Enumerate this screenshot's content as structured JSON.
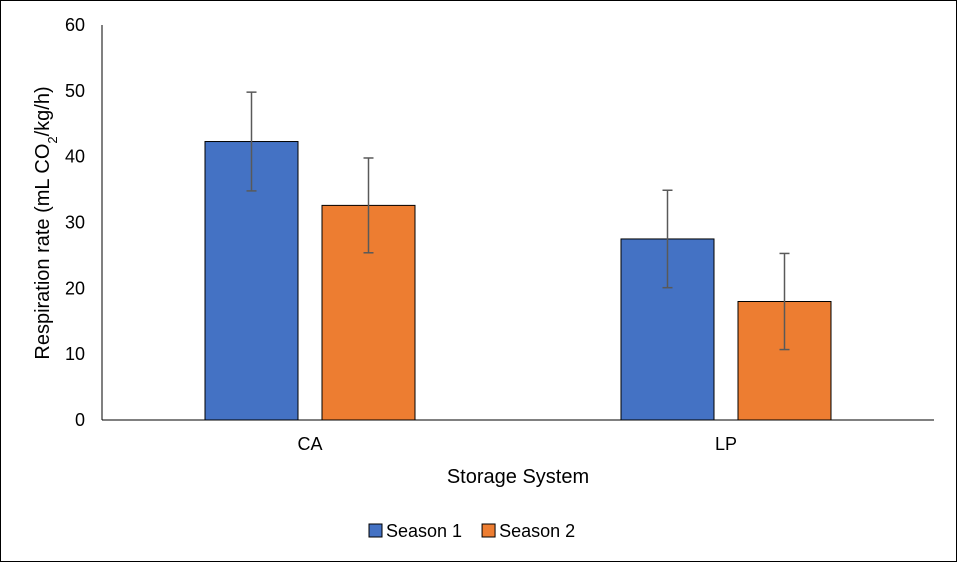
{
  "chart_data": {
    "type": "bar",
    "categories": [
      "CA",
      "LP"
    ],
    "series": [
      {
        "name": "Season 1",
        "color": "#4472C4",
        "values": [
          42.3,
          27.5
        ],
        "error": [
          7.5,
          7.4
        ]
      },
      {
        "name": "Season 2",
        "color": "#ED7D31",
        "values": [
          32.6,
          18.0
        ],
        "error": [
          7.2,
          7.3
        ]
      }
    ],
    "xlabel": "Storage System",
    "ylabel": {
      "prefix": "Respiration rate (mL CO",
      "subscript": "2",
      "suffix": "/kg/h)"
    },
    "ylim": [
      0,
      60
    ],
    "yticks": [
      0,
      10,
      20,
      30,
      40,
      50,
      60
    ],
    "grid": false,
    "legend_position": "bottom"
  }
}
